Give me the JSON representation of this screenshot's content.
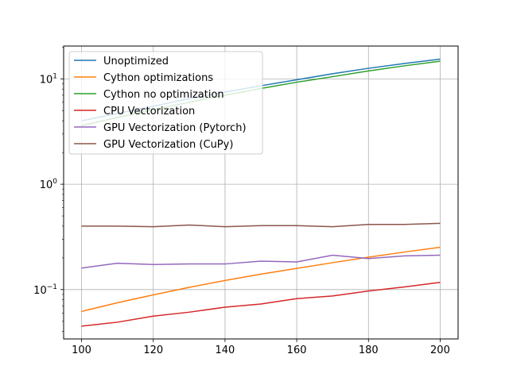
{
  "chart_data": {
    "type": "line",
    "title": "",
    "xlabel": "",
    "ylabel": "",
    "y_scale": "log",
    "xlim": [
      95,
      205
    ],
    "ylim": [
      0.034,
      20.5
    ],
    "grid": true,
    "legend_position": "top-left",
    "x": [
      100,
      110,
      120,
      130,
      140,
      150,
      160,
      170,
      180,
      190,
      200
    ],
    "x_ticks": [
      100,
      120,
      140,
      160,
      180,
      200
    ],
    "x_tick_labels": [
      "100",
      "120",
      "140",
      "160",
      "180",
      "200"
    ],
    "y_ticks": [
      0.1,
      1,
      10
    ],
    "y_tick_labels": [
      {
        "base": "10",
        "exp": "−1"
      },
      {
        "base": "10",
        "exp": "0"
      },
      {
        "base": "10",
        "exp": "1"
      }
    ],
    "series": [
      {
        "name": "Unoptimized",
        "color": "#1f77b4",
        "values": [
          4.0,
          4.7,
          5.5,
          6.5,
          7.5,
          8.6,
          9.8,
          11.2,
          12.6,
          14.0,
          15.4
        ]
      },
      {
        "name": "Cython optimizations",
        "color": "#ff7f0e",
        "values": [
          0.062,
          0.075,
          0.089,
          0.105,
          0.122,
          0.14,
          0.159,
          0.18,
          0.203,
          0.227,
          0.252
        ]
      },
      {
        "name": "Cython no optimization",
        "color": "#2ca02c",
        "values": [
          3.6,
          4.3,
          5.1,
          6.0,
          7.0,
          8.1,
          9.3,
          10.5,
          11.9,
          13.3,
          14.7
        ]
      },
      {
        "name": "CPU Vectorization",
        "color": "#d62728",
        "values": [
          0.045,
          0.049,
          0.056,
          0.061,
          0.068,
          0.073,
          0.082,
          0.087,
          0.097,
          0.106,
          0.117
        ]
      },
      {
        "name": "GPU Vectorization (Pytorch)",
        "color": "#9467bd",
        "values": [
          0.16,
          0.178,
          0.173,
          0.175,
          0.175,
          0.186,
          0.183,
          0.212,
          0.197,
          0.209,
          0.212
        ]
      },
      {
        "name": "GPU Vectorization (CuPy)",
        "color": "#8c564b",
        "values": [
          0.4,
          0.4,
          0.395,
          0.41,
          0.395,
          0.405,
          0.405,
          0.395,
          0.415,
          0.415,
          0.425
        ]
      }
    ]
  }
}
